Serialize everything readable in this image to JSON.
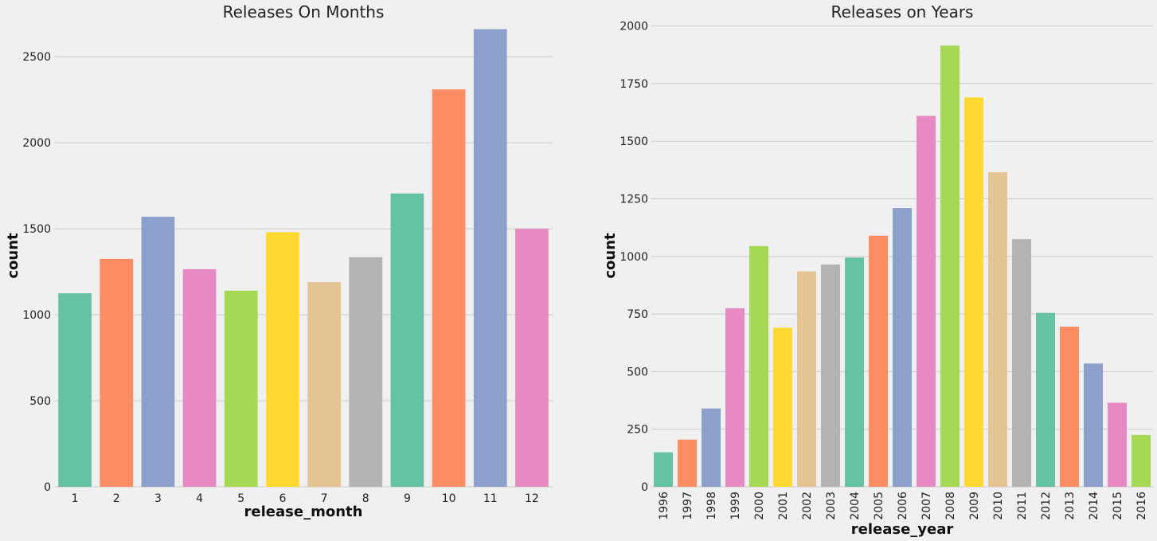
{
  "palette": [
    "#66c2a5",
    "#fc8d62",
    "#8da0cb",
    "#e78ac3",
    "#a6d854",
    "#ffd92f",
    "#e5c494",
    "#b3b3b3"
  ],
  "chart_data": [
    {
      "type": "bar",
      "title": "Releases On Months",
      "xlabel": "release_month",
      "ylabel": "count",
      "categories": [
        "1",
        "2",
        "3",
        "4",
        "5",
        "6",
        "7",
        "8",
        "9",
        "10",
        "11",
        "12"
      ],
      "values": [
        1125,
        1325,
        1570,
        1265,
        1140,
        1480,
        1190,
        1335,
        1705,
        2310,
        2660,
        1500
      ],
      "ylim": [
        0,
        2700
      ],
      "yticks": [
        0,
        500,
        1000,
        1500,
        2000,
        2500
      ],
      "grid": true,
      "xtick_rotation": 0
    },
    {
      "type": "bar",
      "title": "Releases on Years",
      "xlabel": "release_year",
      "ylabel": "count",
      "categories": [
        "1996",
        "1997",
        "1998",
        "1999",
        "2000",
        "2001",
        "2002",
        "2003",
        "2004",
        "2005",
        "2006",
        "2007",
        "2008",
        "2009",
        "2010",
        "2011",
        "2012",
        "2013",
        "2014",
        "2015",
        "2016"
      ],
      "values": [
        150,
        205,
        340,
        775,
        1045,
        690,
        935,
        965,
        995,
        1090,
        1210,
        1610,
        1915,
        1690,
        1365,
        1075,
        755,
        695,
        535,
        365,
        225
      ],
      "ylim": [
        0,
        2000
      ],
      "yticks": [
        0,
        250,
        500,
        750,
        1000,
        1250,
        1500,
        1750,
        2000
      ],
      "grid": true,
      "xtick_rotation": -90
    }
  ]
}
